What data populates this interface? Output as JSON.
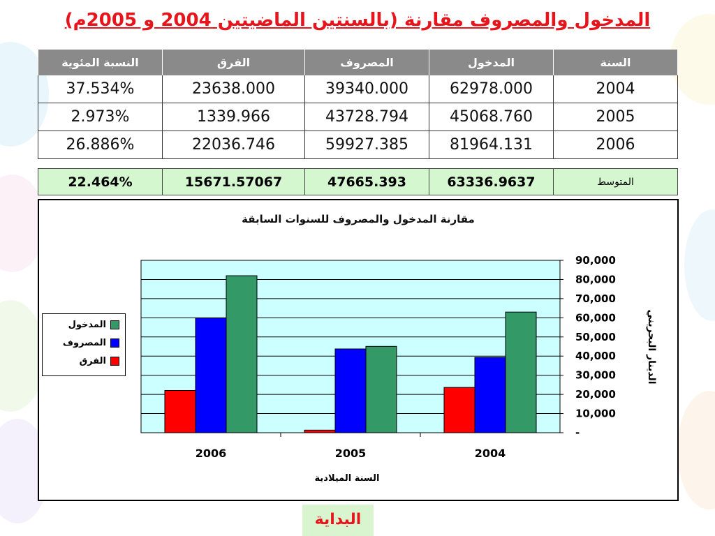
{
  "title": "المدخول والمصروف مقارنة (بالسنتين الماضيتين 2004 و 2005م)",
  "table": {
    "headers": [
      "السنة",
      "المدخول",
      "المصروف",
      "الفرق",
      "النسبة المئوية"
    ],
    "rows": [
      [
        "2004",
        "62978.000",
        "39340.000",
        "23638.000",
        "37.534%"
      ],
      [
        "2005",
        "45068.760",
        "43728.794",
        "1339.966",
        "2.973%"
      ],
      [
        "2006",
        "81964.131",
        "59927.385",
        "22036.746",
        "26.886%"
      ]
    ],
    "average": [
      "المتوسط",
      "63336.9637",
      "47665.393",
      "15671.57067",
      "22.464%"
    ]
  },
  "chart_data": {
    "type": "bar",
    "title": "مقارنة المدخول والمصروف للسنوات السابقة",
    "xlabel": "السنة الميلادية",
    "ylabel": "الدينار البحريني",
    "categories": [
      "2006",
      "2005",
      "2004"
    ],
    "series": [
      {
        "name": "الفرق",
        "color": "#ff0000",
        "values": [
          22036.746,
          1339.966,
          23638.0
        ]
      },
      {
        "name": "المصروف",
        "color": "#0000ff",
        "values": [
          59927.385,
          43728.794,
          39340.0
        ]
      },
      {
        "name": "المدخول",
        "color": "#339966",
        "values": [
          81964.131,
          45068.76,
          62978.0
        ]
      }
    ],
    "legend_order": [
      "المدخول",
      "المصروف",
      "الفرق"
    ],
    "ylim": [
      0,
      90000
    ],
    "yticks": [
      "-",
      "10,000",
      "20,000",
      "30,000",
      "40,000",
      "50,000",
      "60,000",
      "70,000",
      "80,000",
      "90,000"
    ],
    "grid": true,
    "plot_background": "#ccffff",
    "legend_position": "left"
  },
  "home_button": "البداية"
}
